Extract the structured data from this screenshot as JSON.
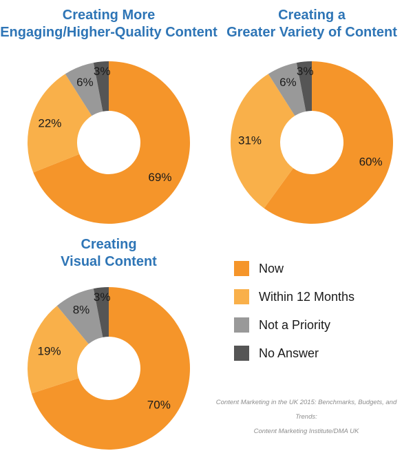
{
  "chart_data": [
    {
      "type": "donut",
      "title": [
        "Creating More",
        "Engaging/Higher-Quality Content"
      ],
      "categories": [
        "Now",
        "Within 12 Months",
        "Not a Priority",
        "No Answer"
      ],
      "values": [
        69,
        22,
        6,
        3
      ],
      "labels": [
        "69%",
        "22%",
        "6%",
        "3%"
      ]
    },
    {
      "type": "donut",
      "title": [
        "Creating a",
        "Greater Variety of Content"
      ],
      "categories": [
        "Now",
        "Within 12 Months",
        "Not a Priority",
        "No Answer"
      ],
      "values": [
        60,
        31,
        6,
        3
      ],
      "labels": [
        "60%",
        "31%",
        "6%",
        "3%"
      ]
    },
    {
      "type": "donut",
      "title": [
        "Creating",
        "Visual Content"
      ],
      "categories": [
        "Now",
        "Within 12 Months",
        "Not a Priority",
        "No Answer"
      ],
      "values": [
        70,
        19,
        8,
        3
      ],
      "labels": [
        "70%",
        "19%",
        "8%",
        "3%"
      ]
    }
  ],
  "legend": [
    {
      "label": "Now",
      "color": "#f5952a"
    },
    {
      "label": "Within 12 Months",
      "color": "#f9b04a"
    },
    {
      "label": "Not a Priority",
      "color": "#999999"
    },
    {
      "label": "No Answer",
      "color": "#555555"
    }
  ],
  "colors": [
    "#f5952a",
    "#f9b04a",
    "#999999",
    "#555555"
  ],
  "source": {
    "line1": "Content Marketing in the UK 2015: Benchmarks, Budgets, and Trends:",
    "line2": "Content Marketing Institute/DMA UK"
  }
}
